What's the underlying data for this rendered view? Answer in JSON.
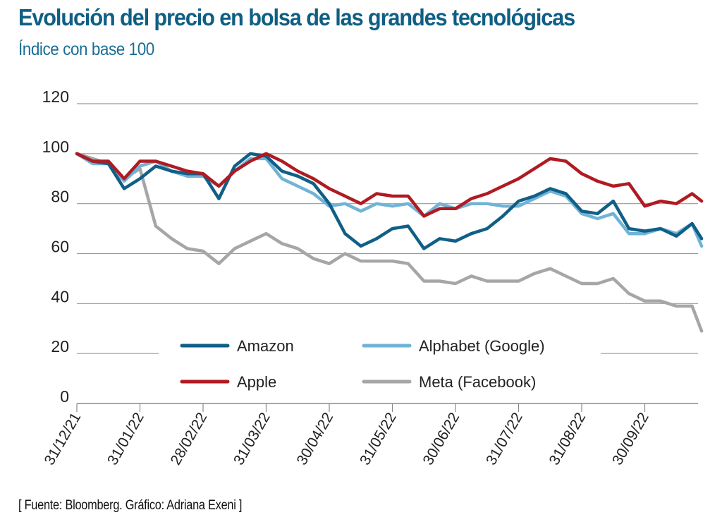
{
  "header": {
    "title": "Evolución del precio en bolsa de las grandes tecnológicas",
    "subtitle": "Índice con base 100"
  },
  "footer": {
    "source": "[ Fuente: Bloomberg. Gráfico: Adriana Exeni ]"
  },
  "chart_data": {
    "type": "line",
    "title": "Evolución del precio en bolsa de las grandes tecnológicas",
    "subtitle": "Índice con base 100",
    "xlabel": "",
    "ylabel": "",
    "ylim": [
      0,
      120
    ],
    "yticks": [
      0,
      20,
      40,
      60,
      80,
      100,
      120
    ],
    "grid": true,
    "legend_position": "center-bottom",
    "x_tick_labels": [
      "31/12/21",
      "31/01/22",
      "28/02/22",
      "31/03/22",
      "30/04/22",
      "31/05/22",
      "30/06/22",
      "31/07/22",
      "31/08/22",
      "30/09/22"
    ],
    "x_tick_months": [
      0,
      1,
      2,
      3,
      4,
      5,
      6,
      7,
      8,
      9
    ],
    "x_range_months": [
      0,
      9.9
    ],
    "x_unit": "months since 31/12/21",
    "x": [
      0,
      0.25,
      0.5,
      0.75,
      1.0,
      1.25,
      1.5,
      1.75,
      2.0,
      2.25,
      2.5,
      2.75,
      3.0,
      3.25,
      3.5,
      3.75,
      4.0,
      4.25,
      4.5,
      4.75,
      5.0,
      5.25,
      5.5,
      5.75,
      6.0,
      6.25,
      6.5,
      6.75,
      7.0,
      7.25,
      7.5,
      7.75,
      8.0,
      8.25,
      8.5,
      8.75,
      9.0,
      9.25,
      9.5,
      9.75,
      9.9
    ],
    "series": [
      {
        "name": "Amazon",
        "color": "#0f5f86",
        "values": [
          100,
          97,
          96,
          86,
          90,
          95,
          93,
          92,
          92,
          82,
          95,
          100,
          99,
          93,
          91,
          88,
          80,
          68,
          63,
          66,
          70,
          71,
          62,
          66,
          65,
          68,
          70,
          75,
          81,
          83,
          86,
          84,
          77,
          76,
          81,
          70,
          69,
          70,
          67,
          72,
          66
        ]
      },
      {
        "name": "Alphabet (Google)",
        "color": "#71b3d6",
        "values": [
          100,
          96,
          96,
          89,
          95,
          97,
          93,
          91,
          91,
          87,
          93,
          98,
          98,
          90,
          87,
          84,
          79,
          80,
          77,
          80,
          79,
          80,
          75,
          80,
          78,
          80,
          80,
          79,
          79,
          82,
          85,
          83,
          76,
          74,
          76,
          68,
          68,
          70,
          68,
          72,
          63
        ]
      },
      {
        "name": "Apple",
        "color": "#b01a22",
        "values": [
          100,
          97,
          97,
          90,
          97,
          97,
          95,
          93,
          92,
          87,
          93,
          97,
          100,
          97,
          93,
          90,
          86,
          83,
          80,
          84,
          83,
          83,
          75,
          78,
          78,
          82,
          84,
          87,
          90,
          94,
          98,
          97,
          92,
          89,
          87,
          88,
          79,
          81,
          80,
          84,
          81
        ]
      },
      {
        "name": "Meta (Facebook)",
        "color": "#a6a6a6",
        "values": [
          100,
          98,
          96,
          90,
          94,
          71,
          66,
          62,
          61,
          56,
          62,
          65,
          68,
          64,
          62,
          58,
          56,
          60,
          57,
          57,
          57,
          56,
          49,
          49,
          48,
          51,
          49,
          49,
          49,
          52,
          54,
          51,
          48,
          48,
          50,
          44,
          41,
          41,
          39,
          39,
          29
        ]
      }
    ]
  }
}
